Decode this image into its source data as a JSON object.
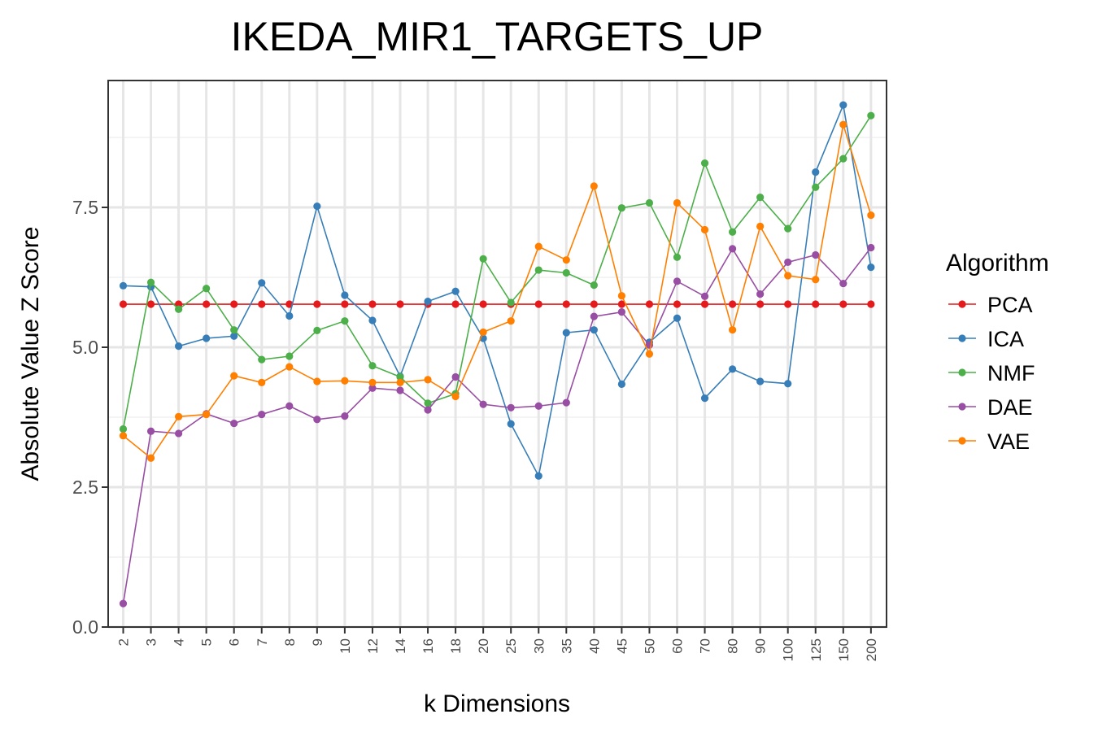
{
  "chart_data": {
    "type": "line",
    "title": "IKEDA_MIR1_TARGETS_UP",
    "xlabel": "k Dimensions",
    "ylabel": "Absolute Value Z Score",
    "ylim": [
      0,
      9.5
    ],
    "yticks": [
      "0.0",
      "2.5",
      "5.0",
      "7.5"
    ],
    "ytick_values": [
      0,
      2.5,
      5,
      7.5
    ],
    "grid": true,
    "legend": {
      "title": "Algorithm",
      "placement": "right"
    },
    "categories": [
      "2",
      "3",
      "4",
      "5",
      "6",
      "7",
      "8",
      "9",
      "10",
      "12",
      "14",
      "16",
      "18",
      "20",
      "25",
      "30",
      "35",
      "40",
      "45",
      "50",
      "60",
      "70",
      "80",
      "90",
      "100",
      "125",
      "150",
      "200"
    ],
    "series": [
      {
        "name": "PCA",
        "color": "#e41a1c",
        "values": [
          5.77,
          5.77,
          5.77,
          5.77,
          5.77,
          5.77,
          5.77,
          5.77,
          5.77,
          5.77,
          5.77,
          5.77,
          5.77,
          5.77,
          5.77,
          5.77,
          5.77,
          5.77,
          5.77,
          5.77,
          5.77,
          5.77,
          5.77,
          5.77,
          5.77,
          5.77,
          5.77,
          5.77
        ]
      },
      {
        "name": "ICA",
        "color": "#377eb8",
        "values": [
          6.1,
          6.08,
          5.02,
          5.16,
          5.2,
          6.15,
          5.56,
          7.52,
          5.93,
          5.48,
          4.48,
          5.82,
          6.0,
          5.16,
          3.63,
          2.7,
          5.26,
          5.31,
          4.34,
          5.09,
          5.52,
          4.09,
          4.61,
          4.39,
          4.35,
          8.13,
          9.33,
          6.43
        ]
      },
      {
        "name": "NMF",
        "color": "#4daf4a",
        "values": [
          3.54,
          6.16,
          5.68,
          6.05,
          5.31,
          4.78,
          4.84,
          5.3,
          5.47,
          4.67,
          4.47,
          4.0,
          4.17,
          6.58,
          5.8,
          6.38,
          6.33,
          6.11,
          7.49,
          7.58,
          6.61,
          8.29,
          7.06,
          7.68,
          7.12,
          7.86,
          8.37,
          9.14
        ]
      },
      {
        "name": "DAE",
        "color": "#984ea3",
        "values": [
          0.42,
          3.5,
          3.46,
          3.81,
          3.64,
          3.8,
          3.95,
          3.71,
          3.77,
          4.27,
          4.23,
          3.88,
          4.47,
          3.98,
          3.92,
          3.95,
          4.01,
          5.55,
          5.63,
          5.04,
          6.18,
          5.91,
          6.76,
          5.95,
          6.52,
          6.65,
          6.14,
          6.78
        ]
      },
      {
        "name": "VAE",
        "color": "#ff7f00",
        "values": [
          3.42,
          3.02,
          3.76,
          3.8,
          4.49,
          4.37,
          4.65,
          4.39,
          4.4,
          4.37,
          4.37,
          4.42,
          4.12,
          5.27,
          5.47,
          6.8,
          6.56,
          7.88,
          5.92,
          4.88,
          7.58,
          7.1,
          5.31,
          7.16,
          6.28,
          6.21,
          8.98,
          7.36
        ]
      }
    ]
  }
}
